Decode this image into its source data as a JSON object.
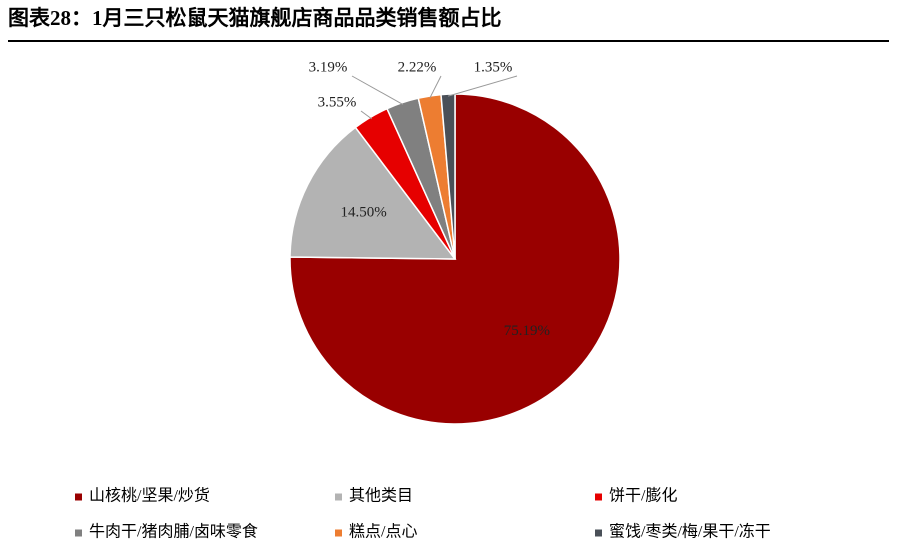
{
  "chart_data": {
    "type": "pie",
    "title": "图表28：1月三只松鼠天猫旗舰店商品品类销售额占比",
    "categories": [
      "山核桃/坚果/炒货",
      "其他类目",
      "饼干/膨化",
      "牛肉干/猪肉脯/卤味零食",
      "糕点/点心",
      "蜜饯/枣类/梅/果干/冻干"
    ],
    "values": [
      75.19,
      14.5,
      3.55,
      3.19,
      2.22,
      1.35
    ],
    "value_labels": [
      "75.19%",
      "14.50%",
      "3.55%",
      "3.19%",
      "2.22%",
      "1.35%"
    ],
    "colors": [
      "#990000",
      "#b3b3b3",
      "#e60000",
      "#808080",
      "#ed7d31",
      "#4a5058"
    ],
    "legend": "bottom"
  }
}
